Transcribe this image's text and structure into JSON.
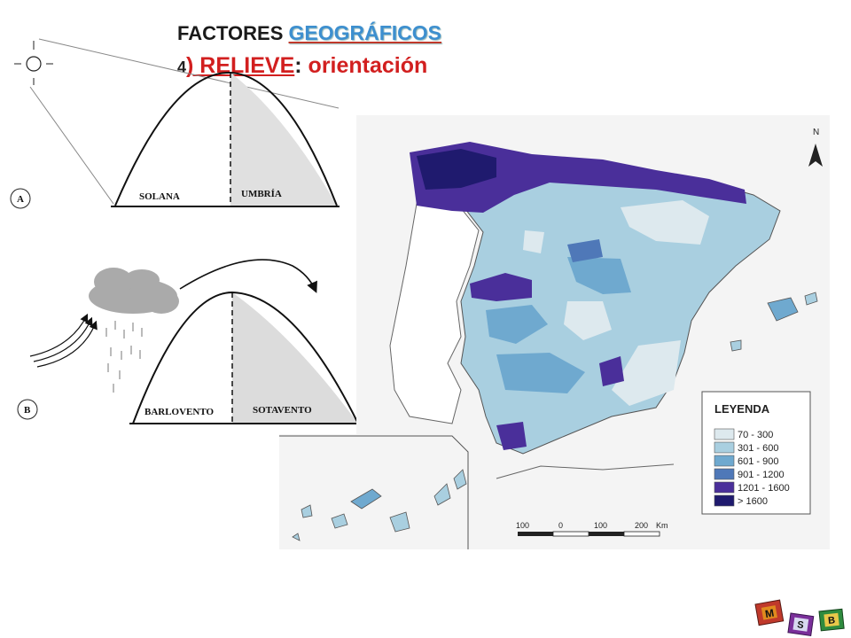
{
  "title": {
    "prefix": "FACTORES ",
    "highlight": "GEOGRÁFICOS",
    "line2_num": "4",
    "line2_topic": ") RELIEVE",
    "line2_sep": ": ",
    "line2_sub": "orientación"
  },
  "diagram_a": {
    "letter": "A",
    "left_label": "SOLANA",
    "right_label": "UMBRÍA"
  },
  "diagram_b": {
    "letter": "B",
    "left_label": "BARLOVENTO",
    "right_label": "SOTAVENTO"
  },
  "map": {
    "north": "N",
    "scale_labels": [
      "100",
      "0",
      "100",
      "200",
      "Km"
    ],
    "legend_title": "LEYENDA",
    "legend": [
      {
        "label": "70 - 300",
        "color": "#dde9ee"
      },
      {
        "label": "301 - 600",
        "color": "#a9cfe0"
      },
      {
        "label": "601 - 900",
        "color": "#6fa9cf"
      },
      {
        "label": "901 - 1200",
        "color": "#4f78b8"
      },
      {
        "label": "1201 - 1600",
        "color": "#4a2f9a"
      },
      {
        "label": "> 1600",
        "color": "#1f1a6e"
      }
    ]
  },
  "logo": {
    "letters": [
      "M",
      "S",
      "B"
    ]
  }
}
